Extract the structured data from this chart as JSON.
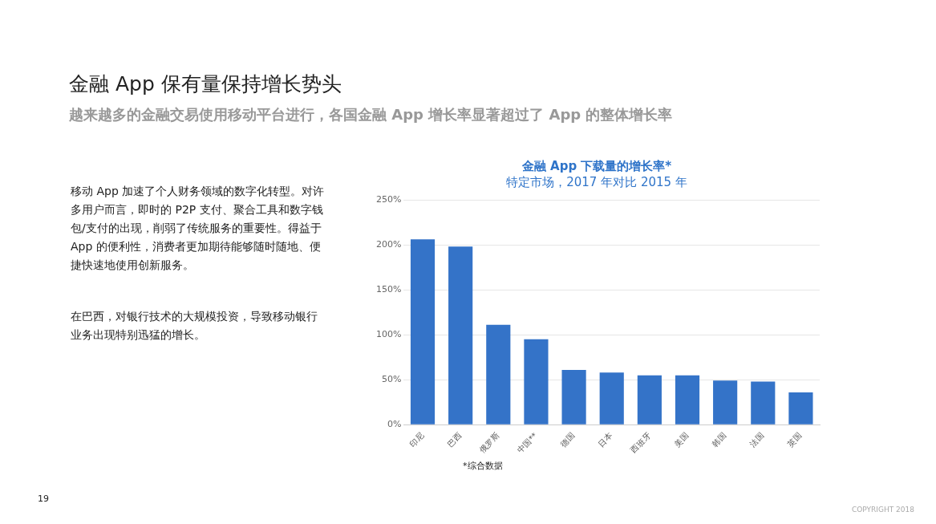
{
  "chart_data": {
    "type": "bar",
    "title": "金融 App 下载量的增长率*",
    "subtitle": "特定市场，2017 年对比 2015 年",
    "categories": [
      "印尼",
      "巴西",
      "俄罗斯",
      "中国**",
      "德国",
      "日本",
      "西班牙",
      "美国",
      "韩国",
      "法国",
      "英国"
    ],
    "values": [
      206,
      198,
      111,
      95,
      61,
      58,
      55,
      55,
      49,
      48,
      36
    ],
    "color": "#3473c8",
    "ylim": [
      0,
      250
    ],
    "yticks": [
      {
        "value": 0,
        "label": "0%"
      },
      {
        "value": 50,
        "label": "50%"
      },
      {
        "value": 100,
        "label": "100%"
      },
      {
        "value": 150,
        "label": "150%"
      },
      {
        "value": 200,
        "label": "200%"
      },
      {
        "value": 250,
        "label": "250%"
      }
    ],
    "grid": "y",
    "annotations": [
      "金融 App 保有量保持增长势头",
      "越来越多的金融交易使用移动平台进行，各国金融 App 增长率显著超过了 App 的整体增长率",
      "移动 App 加速了个人财务领域的数字化转型。对许多用户而言，即时的 P2P 支付、聚合工具和数字钱包/支付的出现，削弱了传统服务的重要性。得益于 App 的便利性，消费者更加期待能够随时随地、便捷快速地使用创新服务。",
      "在巴西，对银行技术的大规模投资，导致移动银行业务出现特别迅猛的增长。",
      "*综合数据",
      "19",
      "COPYRIGHT 2018"
    ]
  }
}
